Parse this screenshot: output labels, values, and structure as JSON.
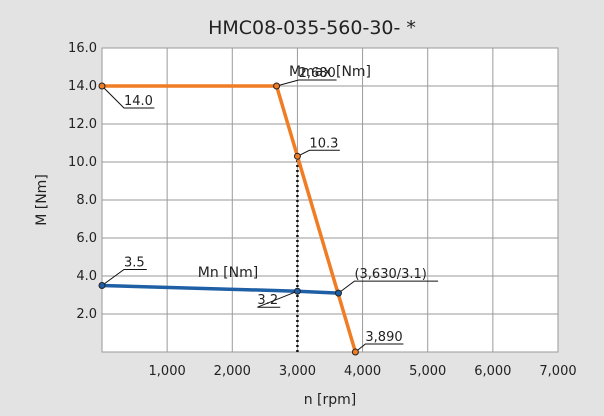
{
  "chart_data": {
    "type": "line",
    "title": "HMC08-035-560-30- *",
    "xlabel": "n [rpm]",
    "ylabel": "M [Nm]",
    "xlim": [
      0,
      7000
    ],
    "ylim": [
      0,
      16
    ],
    "x_ticks": [
      1000,
      2000,
      3000,
      4000,
      5000,
      6000,
      7000
    ],
    "x_tick_labels": [
      "1,000",
      "2,000",
      "3,000",
      "4,000",
      "5,000",
      "6,000",
      "7,000"
    ],
    "y_ticks": [
      2,
      4,
      6,
      8,
      10,
      12,
      14,
      16
    ],
    "y_tick_labels": [
      "2.0",
      "4.0",
      "6.0",
      "8.0",
      "10.0",
      "12.0",
      "14.0",
      "16.0"
    ],
    "grid": true,
    "series": [
      {
        "name": "Mmax [Nm]",
        "color": "#f07d24",
        "points": [
          [
            0,
            14.0
          ],
          [
            2680,
            14.0
          ],
          [
            3000,
            10.3
          ],
          [
            3890,
            0
          ]
        ]
      },
      {
        "name": "Mn [Nm]",
        "color": "#1f5fa6",
        "points": [
          [
            0,
            3.5
          ],
          [
            3000,
            3.2
          ],
          [
            3630,
            3.1
          ]
        ]
      }
    ],
    "annotations": [
      {
        "text": "14.0",
        "x": 0,
        "y": 14.0
      },
      {
        "text": "2,680",
        "x": 2680,
        "y": 14.0
      },
      {
        "text": "10.3",
        "x": 3000,
        "y": 10.3
      },
      {
        "text": "3.5",
        "x": 0,
        "y": 3.5
      },
      {
        "text": "3.2",
        "x": 3000,
        "y": 3.2
      },
      {
        "text": "(3,630/3.1)",
        "x": 3630,
        "y": 3.1
      },
      {
        "text": "3,890",
        "x": 3890,
        "y": 0
      }
    ],
    "reference_lines": [
      {
        "type": "vertical",
        "x": 3000,
        "style": "dotted",
        "y_from": 0,
        "y_to": 10.3
      }
    ]
  }
}
